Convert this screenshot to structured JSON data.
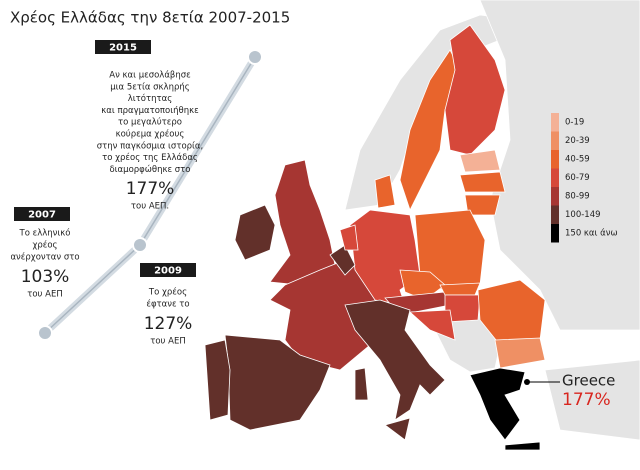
{
  "title": "Χρέος Ελλάδας την 8ετία 2007-2015",
  "timeline": [
    {
      "year": "2007",
      "lines": [
        "Το ελληνικό",
        "χρέος",
        "ανέρχονταν στο"
      ],
      "value": "103%",
      "unit": "του ΑΕΠ"
    },
    {
      "year": "2009",
      "lines": [
        "Το χρέος",
        "έφτανε το"
      ],
      "value": "127%",
      "unit": "του ΑΕΠ"
    },
    {
      "year": "2015",
      "lines": [
        "Αν και μεσολάβησε",
        "μια 5ετία σκληρής",
        "λιτότητας",
        "και πραγματοποιήθηκε",
        "το μεγαλύτερο",
        "κούρεμα χρέους",
        "στην παγκόσμια ιστορία,",
        "το χρέος της Ελλάδας",
        "διαμορφώθηκε στο"
      ],
      "value": "177%",
      "unit": "του ΑΕΠ."
    }
  ],
  "legend": [
    {
      "label": "0-19",
      "color": "#f4b196"
    },
    {
      "label": "20-39",
      "color": "#ef9064"
    },
    {
      "label": "40-59",
      "color": "#e8642c"
    },
    {
      "label": "60-79",
      "color": "#d6483a"
    },
    {
      "label": "80-99",
      "color": "#a63632"
    },
    {
      "label": "100-149",
      "color": "#62302a"
    },
    {
      "label": "150 και άνω",
      "color": "#000000"
    }
  ],
  "callout": {
    "label": "Greece",
    "value": "177%"
  }
}
